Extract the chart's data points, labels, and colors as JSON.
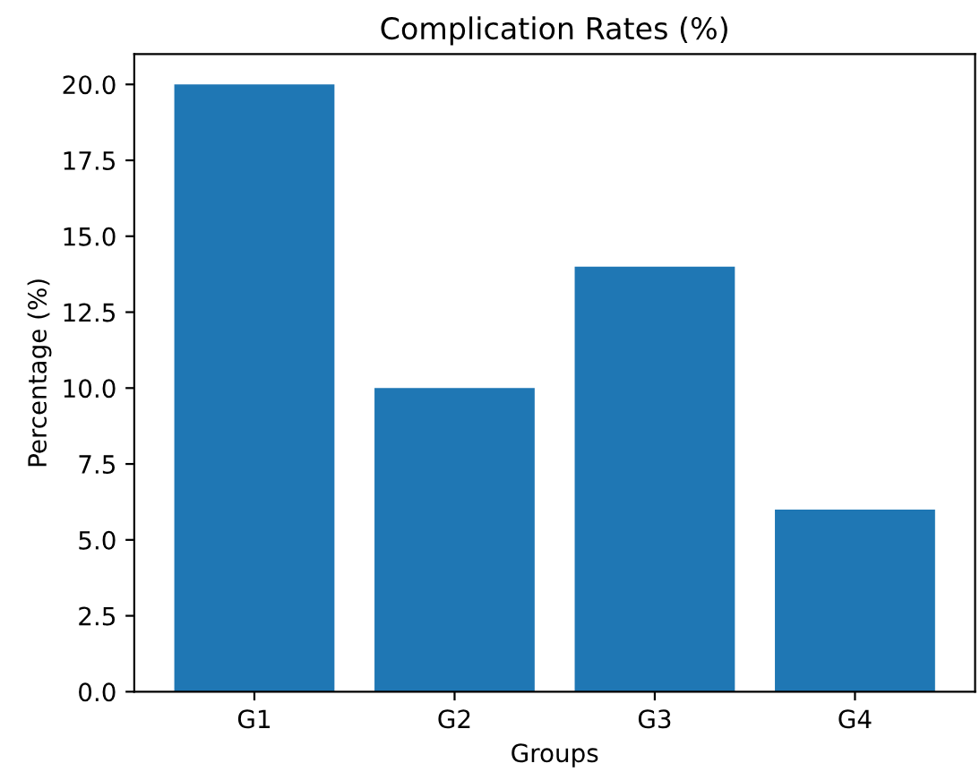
{
  "chart_data": {
    "type": "bar",
    "title": "Complication Rates (%)",
    "xlabel": "Groups",
    "ylabel": "Percentage (%)",
    "categories": [
      "G1",
      "G2",
      "G3",
      "G4"
    ],
    "values": [
      20,
      10,
      14,
      6
    ],
    "color": "#1f77b4",
    "ylim": [
      0,
      21
    ],
    "yticks": [
      {
        "value": 0,
        "label": "0.0"
      },
      {
        "value": 2.5,
        "label": "2.5"
      },
      {
        "value": 5,
        "label": "5.0"
      },
      {
        "value": 7.5,
        "label": "7.5"
      },
      {
        "value": 10,
        "label": "10.0"
      },
      {
        "value": 12.5,
        "label": "12.5"
      },
      {
        "value": 15,
        "label": "15.0"
      },
      {
        "value": 17.5,
        "label": "17.5"
      },
      {
        "value": 20,
        "label": "20.0"
      }
    ],
    "grid": false,
    "legend": false
  }
}
